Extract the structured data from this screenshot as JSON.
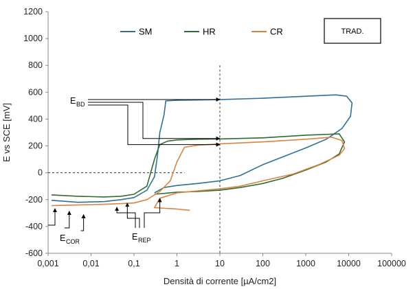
{
  "chart_data": {
    "type": "line",
    "title": "",
    "xlabel": "Densità di corrente [µA/cm2]",
    "ylabel": "E vs SCE [mV]",
    "xscale": "log",
    "xlim": [
      0.001,
      100000
    ],
    "ylim": [
      -600,
      1200
    ],
    "x_ticks": [
      "0,001",
      "0,01",
      "0,1",
      "1",
      "10",
      "100",
      "1000",
      "10000",
      "100000"
    ],
    "y_ticks": [
      "-600",
      "-400",
      "-200",
      "0",
      "200",
      "400",
      "600",
      "800",
      "1000",
      "1200"
    ],
    "grid": false,
    "legend_position": "top",
    "box_label": "TRAD.",
    "series": [
      {
        "name": "SM",
        "color": "#2f6f97",
        "points": [
          [
            0.0012,
            -205
          ],
          [
            0.005,
            -220
          ],
          [
            0.02,
            -215
          ],
          [
            0.05,
            -200
          ],
          [
            0.1,
            -185
          ],
          [
            0.2,
            -130
          ],
          [
            0.3,
            -30
          ],
          [
            0.35,
            120
          ],
          [
            0.4,
            300
          ],
          [
            0.5,
            430
          ],
          [
            0.55,
            535
          ],
          [
            1,
            540
          ],
          [
            10,
            545
          ],
          [
            100,
            555
          ],
          [
            1000,
            570
          ],
          [
            5000,
            580
          ],
          [
            9000,
            570
          ],
          [
            12000,
            520
          ],
          [
            11000,
            420
          ],
          [
            7000,
            330
          ],
          [
            3000,
            250
          ],
          [
            1000,
            185
          ],
          [
            300,
            120
          ],
          [
            100,
            60
          ],
          [
            30,
            -20
          ],
          [
            10,
            -60
          ],
          [
            3,
            -80
          ],
          [
            1,
            -95
          ],
          [
            0.5,
            -110
          ],
          [
            0.3,
            -150
          ]
        ]
      },
      {
        "name": "HR",
        "color": "#2e6b2e",
        "points": [
          [
            0.0012,
            -165
          ],
          [
            0.005,
            -175
          ],
          [
            0.02,
            -180
          ],
          [
            0.05,
            -175
          ],
          [
            0.1,
            -160
          ],
          [
            0.2,
            -100
          ],
          [
            0.3,
            100
          ],
          [
            0.4,
            210
          ],
          [
            0.6,
            235
          ],
          [
            1,
            245
          ],
          [
            3,
            250
          ],
          [
            10,
            252
          ],
          [
            100,
            260
          ],
          [
            1000,
            280
          ],
          [
            6000,
            290
          ],
          [
            8000,
            230
          ],
          [
            6000,
            140
          ],
          [
            3000,
            80
          ],
          [
            1000,
            20
          ],
          [
            300,
            -40
          ],
          [
            100,
            -80
          ],
          [
            30,
            -110
          ],
          [
            10,
            -130
          ],
          [
            3,
            -140
          ],
          [
            1,
            -145
          ],
          [
            0.3,
            -160
          ]
        ]
      },
      {
        "name": "CR",
        "color": "#d8843f",
        "points": [
          [
            0.0012,
            -245
          ],
          [
            0.005,
            -240
          ],
          [
            0.02,
            -235
          ],
          [
            0.05,
            -230
          ],
          [
            0.1,
            -225
          ],
          [
            0.2,
            -200
          ],
          [
            0.4,
            -140
          ],
          [
            0.7,
            -60
          ],
          [
            1,
            80
          ],
          [
            1.5,
            190
          ],
          [
            3,
            205
          ],
          [
            10,
            215
          ],
          [
            100,
            230
          ],
          [
            1000,
            250
          ],
          [
            4000,
            265
          ],
          [
            7000,
            240
          ],
          [
            8000,
            180
          ],
          [
            6000,
            130
          ],
          [
            2000,
            60
          ],
          [
            500,
            -10
          ],
          [
            100,
            -60
          ],
          [
            30,
            -100
          ],
          [
            10,
            -120
          ],
          [
            3,
            -135
          ],
          [
            1,
            -150
          ],
          [
            0.4,
            -190
          ],
          [
            0.3,
            -260
          ],
          [
            1,
            -270
          ],
          [
            2,
            -280
          ]
        ]
      }
    ],
    "annotations": {
      "e_bd_main": "E",
      "e_bd_sub": "BD",
      "e_cor_main": "E",
      "e_cor_sub": "COR",
      "e_rep_main": "E",
      "e_rep_sub": "REP",
      "e_bd_levels_mv": [
        540,
        255,
        210
      ],
      "e_bd_target_x": 10,
      "e_cor_arrow_x": [
        0.001,
        0.002,
        0.004
      ],
      "e_cor_arrow_y_mv": [
        -225,
        -245,
        -270
      ],
      "e_rep_arrow_x": [
        0.04,
        0.07,
        0.4
      ],
      "e_rep_arrow_y_mv": [
        -215,
        -185,
        -150
      ],
      "reference_vertical_x": 10,
      "reference_horizontal_mv": 0,
      "reference_horizontal_x_end": 1.5
    }
  }
}
